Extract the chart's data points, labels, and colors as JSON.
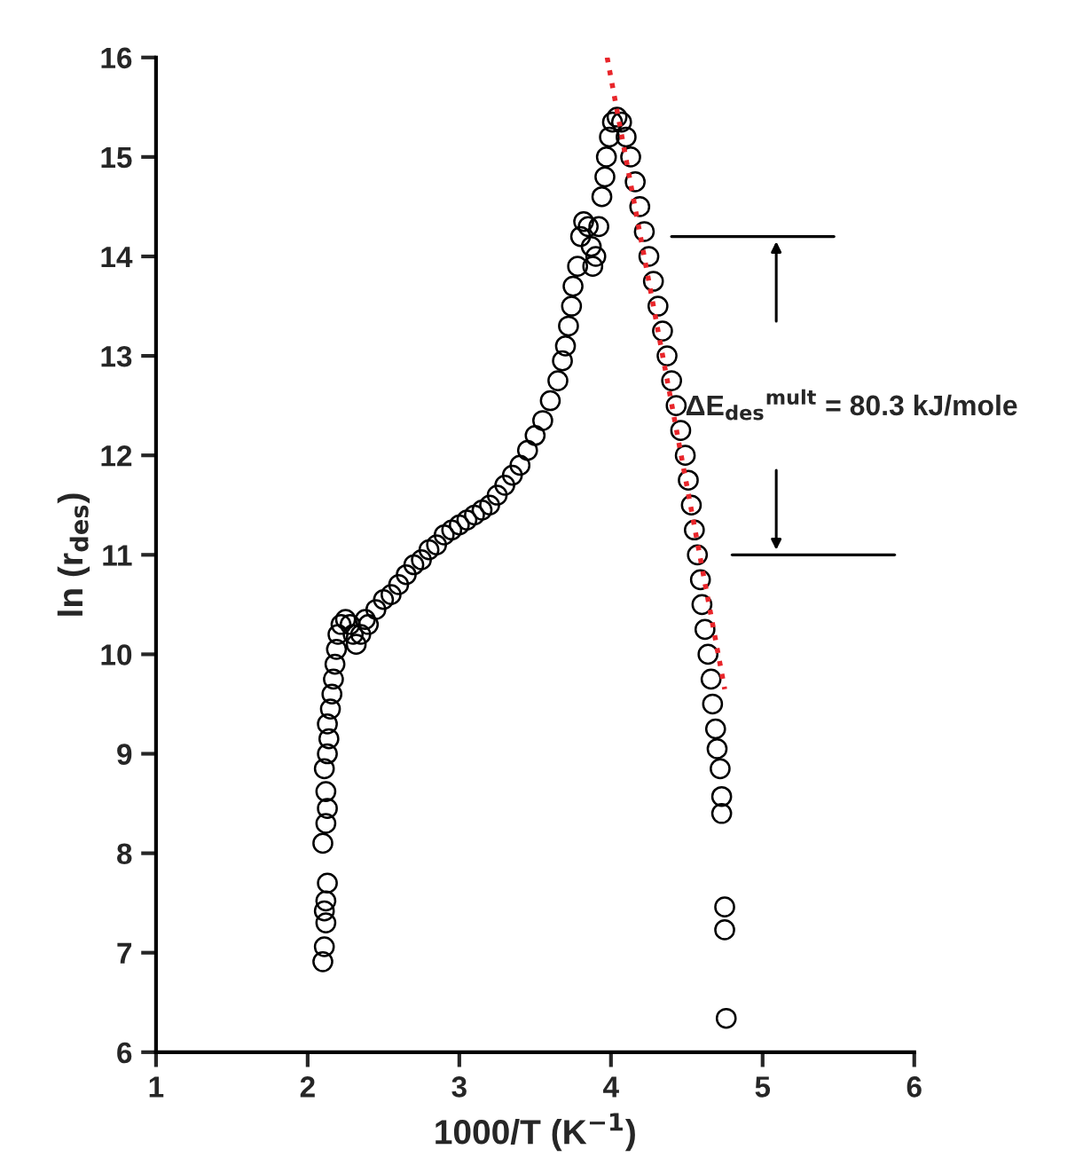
{
  "chart_data": {
    "type": "scatter",
    "xlabel": "1000/T (K$^{−1}$)",
    "ylabel": "ln (r$_{des}$)",
    "xlim": [
      1,
      6
    ],
    "xticks": [
      1,
      2,
      3,
      4,
      5,
      6
    ],
    "ylim": [
      6,
      16
    ],
    "yticks": [
      6,
      7,
      8,
      9,
      10,
      11,
      12,
      13,
      14,
      15,
      16
    ],
    "grid": false,
    "series": [
      {
        "marker": "circle",
        "color": "#000000",
        "x": [
          2.1,
          2.11,
          2.12,
          2.11,
          2.12,
          2.13,
          2.1,
          2.12,
          2.13,
          2.12,
          2.11,
          2.13,
          2.14,
          2.13,
          2.15,
          2.16,
          2.17,
          2.18,
          2.19,
          2.2,
          2.22,
          2.25,
          2.28,
          2.3,
          2.32,
          2.35,
          2.38,
          2.4,
          2.45,
          2.5,
          2.55,
          2.6,
          2.65,
          2.7,
          2.75,
          2.8,
          2.85,
          2.9,
          2.95,
          3.0,
          3.05,
          3.1,
          3.15,
          3.2,
          3.25,
          3.3,
          3.35,
          3.4,
          3.45,
          3.5,
          3.55,
          3.6,
          3.65,
          3.68,
          3.7,
          3.72,
          3.74,
          3.75,
          3.78,
          3.8,
          3.82,
          3.85,
          3.87,
          3.88,
          3.9,
          3.92,
          3.94,
          3.96,
          3.97,
          3.99,
          4.01,
          4.04,
          4.07,
          4.1,
          4.13,
          4.16,
          4.19,
          4.22,
          4.25,
          4.28,
          4.31,
          4.34,
          4.37,
          4.4,
          4.43,
          4.46,
          4.49,
          4.51,
          4.53,
          4.55,
          4.57,
          4.59,
          4.6,
          4.62,
          4.64,
          4.66,
          4.67,
          4.69,
          4.7,
          4.72,
          4.73,
          4.73,
          4.75,
          4.75,
          4.76
        ],
        "values": [
          6.91,
          7.06,
          7.3,
          7.42,
          7.52,
          7.7,
          8.1,
          8.3,
          8.45,
          8.62,
          8.85,
          9.0,
          9.15,
          9.3,
          9.45,
          9.6,
          9.75,
          9.9,
          10.05,
          10.2,
          10.3,
          10.35,
          10.3,
          10.2,
          10.1,
          10.2,
          10.35,
          10.3,
          10.45,
          10.55,
          10.6,
          10.7,
          10.8,
          10.9,
          10.95,
          11.05,
          11.1,
          11.2,
          11.25,
          11.3,
          11.35,
          11.4,
          11.45,
          11.5,
          11.6,
          11.7,
          11.8,
          11.9,
          12.05,
          12.2,
          12.35,
          12.55,
          12.75,
          12.95,
          13.1,
          13.3,
          13.5,
          13.7,
          13.9,
          14.2,
          14.35,
          14.3,
          14.1,
          13.9,
          14.0,
          14.3,
          14.6,
          14.8,
          15.0,
          15.2,
          15.35,
          15.4,
          15.35,
          15.2,
          15.0,
          14.75,
          14.5,
          14.25,
          14.0,
          13.75,
          13.5,
          13.25,
          13.0,
          12.75,
          12.5,
          12.25,
          12.0,
          11.75,
          11.5,
          11.25,
          11.0,
          10.75,
          10.5,
          10.25,
          10.0,
          9.75,
          9.5,
          9.25,
          9.05,
          8.85,
          8.57,
          8.4,
          7.46,
          7.23,
          6.34
        ]
      },
      {
        "type": "line",
        "color": "#e8252a",
        "line_style": "dotted",
        "x": [
          3.975,
          4.75
        ],
        "values": [
          16,
          9.65
        ]
      }
    ],
    "ref_lines": [
      {
        "axis": "y",
        "value": 14.2,
        "label": null
      },
      {
        "axis": "y",
        "value": 11.0,
        "label": null
      }
    ],
    "annotations": [
      "ΔE$_{des}$$^{mult}$ = 80.3 kJ/mole"
    ]
  }
}
